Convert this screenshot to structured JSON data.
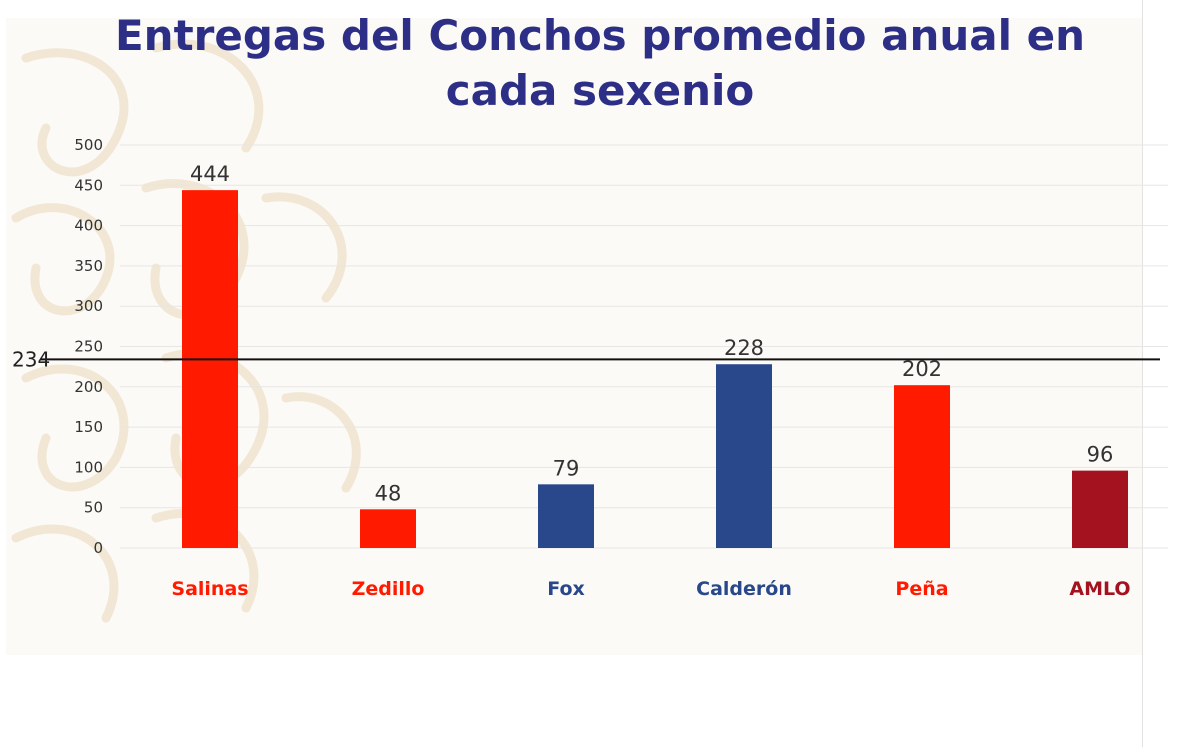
{
  "title": {
    "line1": "Entregas del Conchos promedio anual en",
    "line2": "cada sexenio"
  },
  "colors": {
    "title": "#2c2f85",
    "red": "#ff1a00",
    "blue": "#28488b",
    "darkred": "#a3121e",
    "grid": "#e6e6e6",
    "reference": "#111111"
  },
  "chart_data": {
    "type": "bar",
    "title": "Entregas del Conchos promedio anual en cada sexenio",
    "xlabel": "",
    "ylabel": "",
    "ylim": [
      0,
      500
    ],
    "yticks": [
      0,
      50,
      100,
      150,
      200,
      250,
      300,
      350,
      400,
      450,
      500
    ],
    "grid": true,
    "legend": "none",
    "categories": [
      "Salinas",
      "Zedillo",
      "Fox",
      "Calderón",
      "Peña",
      "AMLO"
    ],
    "values": [
      444,
      48,
      79,
      228,
      202,
      96
    ],
    "bar_colors": [
      "#ff1a00",
      "#ff1a00",
      "#28488b",
      "#28488b",
      "#ff1a00",
      "#a3121e"
    ],
    "label_colors": [
      "#ff1a00",
      "#ff1a00",
      "#28488b",
      "#28488b",
      "#ff1a00",
      "#a3121e"
    ],
    "reference_line": {
      "value": 234,
      "label": "234"
    }
  }
}
